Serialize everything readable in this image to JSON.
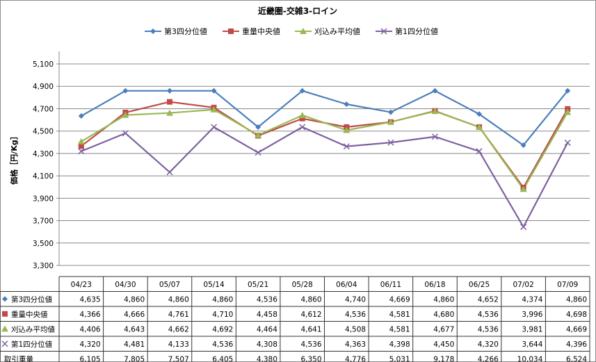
{
  "chart_data": {
    "type": "line",
    "title": "近畿圏-交雑3-ロイン",
    "ylabel": "価格［円/Kg］",
    "ylim": [
      3300,
      5100
    ],
    "yticks": [
      3300,
      3500,
      3700,
      3900,
      4100,
      4300,
      4500,
      4700,
      4900,
      5100
    ],
    "ytick_labels": [
      "3,300",
      "3,500",
      "3,700",
      "3,900",
      "4,100",
      "4,300",
      "4,500",
      "4,700",
      "4,900",
      "5,100"
    ],
    "grid": "horizontal",
    "legend_position": "top",
    "categories": [
      "04/23",
      "04/30",
      "05/07",
      "05/14",
      "05/21",
      "05/28",
      "06/04",
      "06/11",
      "06/18",
      "06/25",
      "07/02",
      "07/09"
    ],
    "series": [
      {
        "name": "第3四分位値",
        "color": "#4a7ebb",
        "marker": "diamond",
        "values": [
          4635,
          4860,
          4860,
          4860,
          4536,
          4860,
          4740,
          4669,
          4860,
          4652,
          4374,
          4860
        ],
        "labels": [
          "4,635",
          "4,860",
          "4,860",
          "4,860",
          "4,536",
          "4,860",
          "4,740",
          "4,669",
          "4,860",
          "4,652",
          "4,374",
          "4,860"
        ]
      },
      {
        "name": "重量中央値",
        "color": "#be4b48",
        "marker": "square",
        "values": [
          4366,
          4666,
          4761,
          4710,
          4458,
          4612,
          4536,
          4581,
          4680,
          4536,
          3996,
          4698
        ],
        "labels": [
          "4,366",
          "4,666",
          "4,761",
          "4,710",
          "4,458",
          "4,612",
          "4,536",
          "4,581",
          "4,680",
          "4,536",
          "3,996",
          "4,698"
        ]
      },
      {
        "name": "刈込み平均値",
        "color": "#98b954",
        "marker": "triangle",
        "values": [
          4406,
          4643,
          4662,
          4692,
          4464,
          4641,
          4508,
          4581,
          4677,
          4536,
          3981,
          4669
        ],
        "labels": [
          "4,406",
          "4,643",
          "4,662",
          "4,692",
          "4,464",
          "4,641",
          "4,508",
          "4,581",
          "4,677",
          "4,536",
          "3,981",
          "4,669"
        ]
      },
      {
        "name": "第1四分位値",
        "color": "#7d60a0",
        "marker": "x",
        "values": [
          4320,
          4481,
          4133,
          4536,
          4308,
          4536,
          4363,
          4398,
          4450,
          4320,
          3644,
          4396
        ],
        "labels": [
          "4,320",
          "4,481",
          "4,133",
          "4,536",
          "4,308",
          "4,536",
          "4,363",
          "4,398",
          "4,450",
          "4,320",
          "3,644",
          "4,396"
        ]
      }
    ],
    "table_extra_row": {
      "name": "取引重量",
      "labels": [
        "6,105",
        "7,805",
        "7,507",
        "6,405",
        "4,380",
        "6,350",
        "4,776",
        "5,031",
        "9,178",
        "4,266",
        "10,034",
        "6,524"
      ]
    }
  }
}
